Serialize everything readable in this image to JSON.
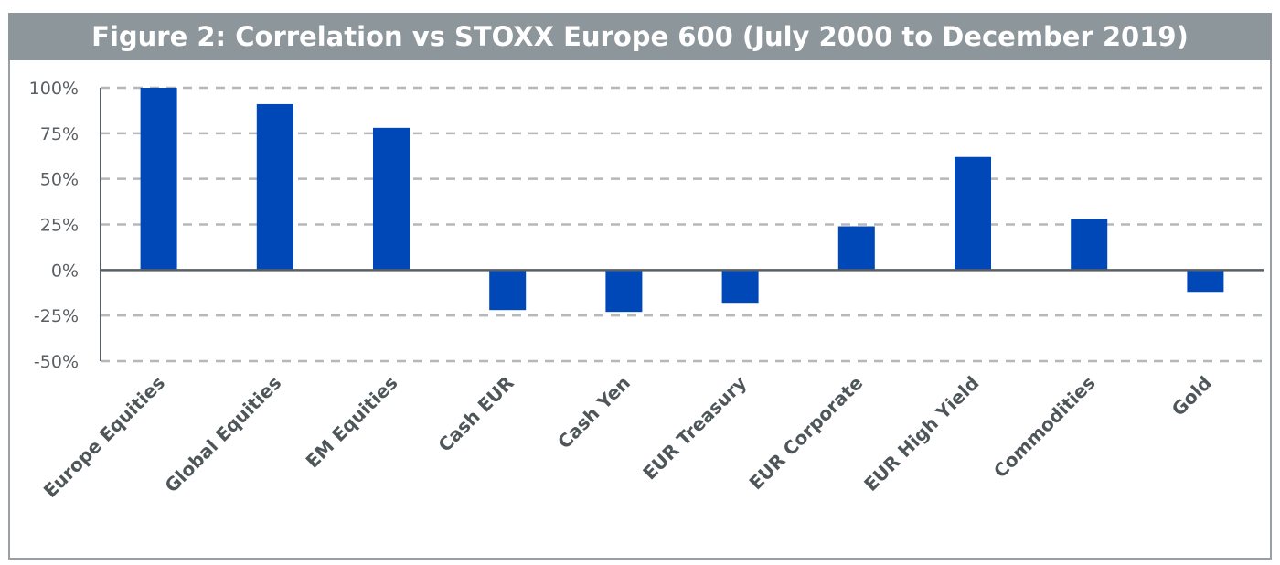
{
  "chart_data": {
    "type": "bar",
    "title": "Figure 2: Correlation vs STOXX Europe 600 (July 2000 to December 2019)",
    "xlabel": "",
    "ylabel": "",
    "categories": [
      "Europe Equities",
      "Global Equities",
      "EM Equities",
      "Cash EUR",
      "Cash Yen",
      "EUR Treasury",
      "EUR Corporate",
      "EUR High Yield",
      "Commodities",
      "Gold"
    ],
    "values": [
      100,
      91,
      78,
      -22,
      -23,
      -18,
      24,
      62,
      28,
      -12
    ],
    "unit": "%",
    "ylim": [
      -50,
      100
    ],
    "yticks": [
      100,
      75,
      50,
      25,
      0,
      -25,
      -50
    ],
    "ytick_labels": [
      "100%",
      "75%",
      "50%",
      "25%",
      "0%",
      "-25%",
      "-50%"
    ],
    "grid": "horizontal dashed",
    "legend": "none",
    "colors": {
      "bar": "#0047b8",
      "title_bg": "#8c969b",
      "grid": "#b4b8bb",
      "axis": "#5a5f63"
    }
  }
}
